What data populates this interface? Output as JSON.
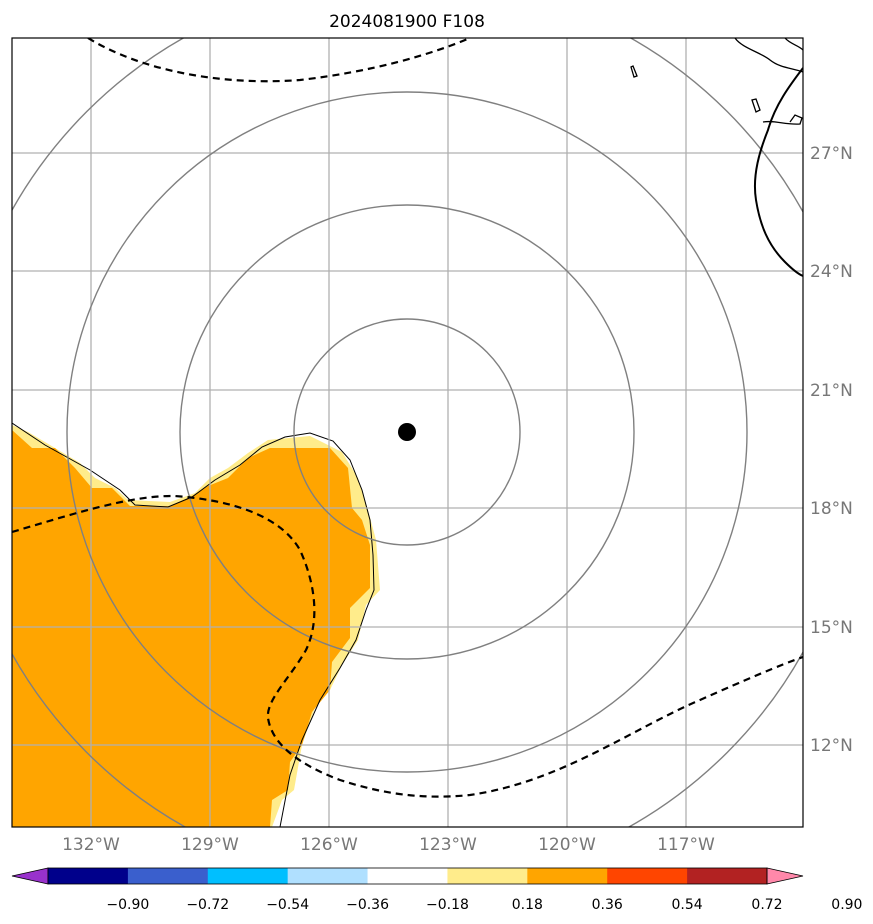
{
  "title": "2024081900 F108",
  "lat_labels": [
    "27°N",
    "24°N",
    "21°N",
    "18°N",
    "15°N",
    "12°N"
  ],
  "lon_labels": [
    "132°W",
    "129°W",
    "126°W",
    "123°W",
    "120°W",
    "117°W"
  ],
  "colorbar": {
    "colors": [
      "#9932cc",
      "#00008b",
      "#3a5fcd",
      "#00bfff",
      "#b0e0ff",
      "#ffffff",
      "#ffec8b",
      "#ffa500",
      "#ff4500",
      "#b22222",
      "#ff88aa"
    ],
    "labels": [
      "−0.90",
      "−0.72",
      "−0.54",
      "−0.36",
      "−0.18",
      "0.18",
      "0.36",
      "0.54",
      "0.72",
      "0.90"
    ]
  },
  "colors": {
    "anomaly_fill": "#ffa500",
    "anomaly_edge": "#ffec8b",
    "range_rings": "#808080",
    "gridlines": "#b0b0b0",
    "storm_center": "#000000"
  },
  "storm_center": {
    "lat": 20.0,
    "lon": -124.0
  }
}
